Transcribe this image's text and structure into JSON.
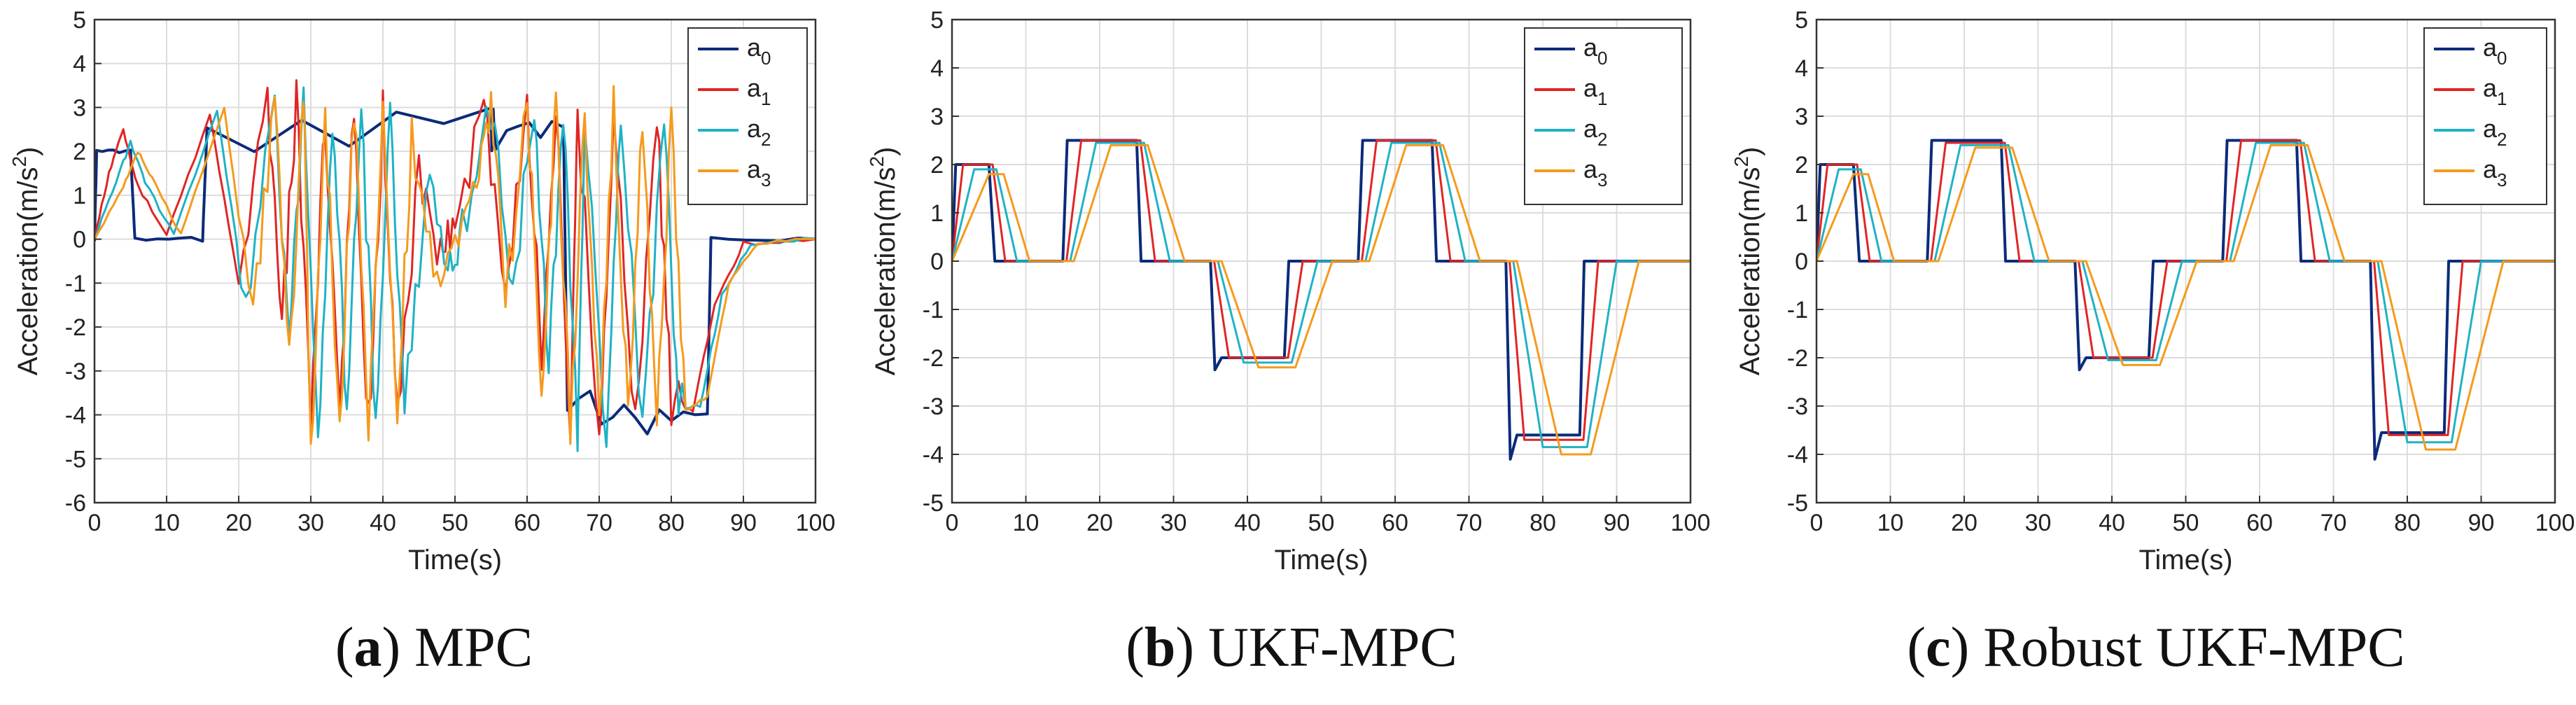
{
  "colors": {
    "a0": "#0b2b7a",
    "a1": "#e02525",
    "a2": "#1fb2c5",
    "a3": "#f59a1c",
    "grid": "#dcdcdc",
    "axis": "#333333"
  },
  "chart_data": [
    {
      "type": "line",
      "id": "mpc",
      "title": "",
      "caption": {
        "letter": "a",
        "text": "MPC"
      },
      "xlabel": "Time(s)",
      "ylabel_base": "Acceleration(m/s",
      "ylabel_sup": "2",
      "ylabel_close": ")",
      "xlim": [
        0,
        100
      ],
      "ylim": [
        -6,
        5
      ],
      "xticks": [
        0,
        10,
        20,
        30,
        40,
        50,
        60,
        70,
        80,
        90,
        100
      ],
      "yticks": [
        5,
        4,
        3,
        2,
        1,
        0,
        -1,
        -2,
        -3,
        -4,
        -5,
        -6
      ],
      "legend_position": "top-right",
      "grid": true,
      "series": [
        {
          "name": "a0",
          "label": "a",
          "sub": "0",
          "color": "#0b2b7a",
          "x": [
            0,
            0.3,
            5,
            5.6,
            15,
            15.6,
            55,
            55.6,
            65,
            65.6,
            75,
            85,
            85.5,
            100
          ],
          "y": [
            0,
            2,
            2,
            0,
            0,
            2.5,
            2.5,
            2.5,
            2.5,
            -3.6,
            -4,
            -4,
            0,
            0
          ]
        },
        {
          "name": "a1",
          "label": "a",
          "sub": "1",
          "color": "#e02525",
          "x": [
            0,
            2,
            4,
            6,
            10,
            16,
            20,
            24,
            26,
            28,
            30,
            32,
            34,
            36,
            38,
            40,
            42,
            45,
            48,
            50,
            54,
            57,
            60,
            62,
            64,
            66,
            67,
            70,
            72,
            75,
            78,
            80,
            83,
            86,
            90,
            100
          ],
          "y": [
            0,
            1.5,
            2.5,
            1.2,
            0.1,
            2.8,
            -1,
            3.0,
            -2,
            3.1,
            -4,
            2.9,
            -4.2,
            3.0,
            -4.3,
            2.8,
            -4.2,
            1.5,
            -0.5,
            0.2,
            3.1,
            -1,
            3.2,
            -2.5,
            3.1,
            -4.5,
            3.0,
            -4.8,
            2.8,
            -4.4,
            2.9,
            -3.8,
            -3.9,
            -1.5,
            -0.1,
            0
          ]
        },
        {
          "name": "a2",
          "label": "a",
          "sub": "2",
          "color": "#1fb2c5",
          "x": [
            0,
            3,
            5,
            7,
            11,
            17,
            21,
            25,
            27,
            29,
            31,
            33,
            35,
            37,
            39,
            41,
            43,
            46,
            49,
            51,
            55,
            58,
            61,
            63,
            65,
            67,
            68,
            71,
            73,
            76,
            79,
            81,
            84,
            87,
            91,
            100
          ],
          "y": [
            0,
            1.3,
            2.2,
            1.3,
            0.1,
            2.9,
            -1.5,
            3.1,
            -2.5,
            3.1,
            -4.5,
            3.0,
            -4.0,
            3.0,
            -4.4,
            2.7,
            -4.0,
            1.2,
            -0.3,
            0.1,
            3.1,
            -1.2,
            3.2,
            -3,
            3.0,
            -4.3,
            2.9,
            -4.6,
            2.6,
            -4.3,
            2.8,
            -3.9,
            -3.8,
            -1.3,
            -0.1,
            0
          ]
        },
        {
          "name": "a3",
          "label": "a",
          "sub": "3",
          "color": "#f59a1c",
          "x": [
            0,
            4,
            6,
            8,
            12,
            18,
            22,
            25,
            27,
            29,
            30,
            32,
            34,
            36,
            38,
            40,
            42,
            44,
            47,
            50,
            53,
            55,
            57,
            60,
            62,
            64,
            66,
            68,
            70,
            72,
            74,
            76,
            78,
            80,
            82,
            85,
            88,
            92,
            100
          ],
          "y": [
            0,
            1.2,
            2.0,
            1.4,
            0.1,
            3.0,
            -2,
            3.3,
            -3,
            3.2,
            -4.9,
            3.1,
            -4.5,
            3.1,
            -4.6,
            3.0,
            -4.3,
            2.5,
            -1,
            0.3,
            1.0,
            3.2,
            -1.5,
            3.3,
            -3.5,
            3.1,
            -4.2,
            3.0,
            -4.5,
            2.9,
            -4.2,
            2.9,
            -4.0,
            2.7,
            -3.9,
            -3.6,
            -1.0,
            -0.1,
            0
          ]
        }
      ]
    },
    {
      "type": "line",
      "id": "ukf-mpc",
      "title": "",
      "caption": {
        "letter": "b",
        "text": "UKF-MPC"
      },
      "xlabel": "Time(s)",
      "ylabel_base": "Acceleration(m/s",
      "ylabel_sup": "2",
      "ylabel_close": ")",
      "xlim": [
        0,
        100
      ],
      "ylim": [
        -5,
        5
      ],
      "xticks": [
        0,
        10,
        20,
        30,
        40,
        50,
        60,
        70,
        80,
        90,
        100
      ],
      "yticks": [
        5,
        4,
        3,
        2,
        1,
        0,
        -1,
        -2,
        -3,
        -4,
        -5
      ],
      "legend_position": "top-right",
      "grid": true,
      "series": [
        {
          "name": "a0",
          "label": "a",
          "sub": "0",
          "color": "#0b2b7a",
          "x": [
            0,
            0.5,
            5,
            5.8,
            15,
            15.6,
            25,
            25.6,
            35,
            35.6,
            36.5,
            45,
            45.6,
            55,
            55.6,
            65,
            65.6,
            75,
            75.6,
            76.5,
            85,
            85.6,
            100
          ],
          "y": [
            0,
            2,
            2,
            0,
            0,
            2.5,
            2.5,
            0,
            0,
            -2.25,
            -2,
            -2,
            0,
            0,
            2.5,
            2.5,
            0,
            0,
            -4.1,
            -3.6,
            -3.6,
            0,
            0
          ]
        },
        {
          "name": "a1",
          "label": "a",
          "sub": "1",
          "color": "#e02525",
          "x": [
            0,
            1.5,
            5.5,
            7.2,
            15.5,
            17.5,
            25.5,
            27.5,
            35.5,
            37.5,
            45.5,
            47.5,
            55.5,
            57.5,
            65.5,
            67.5,
            75.5,
            77.5,
            85.5,
            87.5,
            100
          ],
          "y": [
            0,
            2,
            2,
            0,
            0,
            2.5,
            2.5,
            0,
            0,
            -2,
            -2,
            0,
            0,
            2.5,
            2.5,
            0,
            0,
            -3.7,
            -3.7,
            0,
            0
          ]
        },
        {
          "name": "a2",
          "label": "a",
          "sub": "2",
          "color": "#1fb2c5",
          "x": [
            0,
            3,
            6,
            8.8,
            16,
            19.5,
            26,
            29.5,
            36,
            39.5,
            46,
            49.5,
            56,
            59.5,
            66,
            69.5,
            76,
            80,
            86,
            90,
            100
          ],
          "y": [
            0,
            1.9,
            1.9,
            0,
            0,
            2.45,
            2.45,
            0,
            0,
            -2.1,
            -2.1,
            0,
            0,
            2.45,
            2.45,
            0,
            0,
            -3.85,
            -3.85,
            0,
            0
          ]
        },
        {
          "name": "a3",
          "label": "a",
          "sub": "3",
          "color": "#f59a1c",
          "x": [
            0,
            5,
            7,
            10.5,
            16.5,
            21.5,
            26.5,
            31.5,
            36.5,
            41.5,
            46.5,
            51.5,
            56.5,
            61.5,
            66.5,
            71.5,
            76.5,
            82.5,
            86.5,
            93,
            100
          ],
          "y": [
            0,
            1.8,
            1.8,
            0,
            0,
            2.4,
            2.4,
            0,
            0,
            -2.2,
            -2.2,
            0,
            0,
            2.4,
            2.4,
            0,
            0,
            -4.0,
            -4.0,
            0,
            0
          ]
        }
      ]
    },
    {
      "type": "line",
      "id": "robust-ukf-mpc",
      "title": "",
      "caption": {
        "letter": "c",
        "text": "Robust UKF-MPC"
      },
      "xlabel": "Time(s)",
      "ylabel_base": "Acceleration(m/s",
      "ylabel_sup": "2",
      "ylabel_close": ")",
      "xlim": [
        0,
        100
      ],
      "ylim": [
        -5,
        5
      ],
      "xticks": [
        0,
        10,
        20,
        30,
        40,
        50,
        60,
        70,
        80,
        90,
        100
      ],
      "yticks": [
        5,
        4,
        3,
        2,
        1,
        0,
        -1,
        -2,
        -3,
        -4,
        -5
      ],
      "legend_position": "top-right",
      "grid": true,
      "series": [
        {
          "name": "a0",
          "label": "a",
          "sub": "0",
          "color": "#0b2b7a",
          "x": [
            0,
            0.5,
            5,
            5.8,
            15,
            15.6,
            25,
            25.6,
            35,
            35.6,
            36.5,
            45,
            45.6,
            55,
            55.6,
            65,
            65.6,
            75,
            75.6,
            76.5,
            85,
            85.6,
            100
          ],
          "y": [
            0,
            2,
            2,
            0,
            0,
            2.5,
            2.5,
            0,
            0,
            -2.25,
            -2,
            -2,
            0,
            0,
            2.5,
            2.5,
            0,
            0,
            -4.1,
            -3.55,
            -3.55,
            0,
            0
          ]
        },
        {
          "name": "a1",
          "label": "a",
          "sub": "1",
          "color": "#e02525",
          "x": [
            0,
            1.5,
            5.5,
            7.2,
            15.5,
            17.5,
            25.5,
            27.5,
            35.5,
            37.5,
            45.5,
            47.5,
            55.5,
            57.5,
            65.5,
            67.5,
            75.5,
            77.5,
            85.5,
            87.5,
            100
          ],
          "y": [
            0,
            2,
            2,
            0,
            0,
            2.45,
            2.45,
            0,
            0,
            -2,
            -2,
            0,
            0,
            2.5,
            2.5,
            0,
            0,
            -3.6,
            -3.6,
            0,
            0
          ]
        },
        {
          "name": "a2",
          "label": "a",
          "sub": "2",
          "color": "#1fb2c5",
          "x": [
            0,
            3,
            6,
            8.8,
            16,
            19.5,
            26,
            29.5,
            36,
            39.5,
            46,
            49.5,
            56,
            59.5,
            66,
            69.5,
            76,
            80,
            86,
            90,
            100
          ],
          "y": [
            0,
            1.9,
            1.9,
            0,
            0,
            2.4,
            2.4,
            0,
            0,
            -2.05,
            -2.05,
            0,
            0,
            2.45,
            2.45,
            0,
            0,
            -3.75,
            -3.75,
            0,
            0
          ]
        },
        {
          "name": "a3",
          "label": "a",
          "sub": "3",
          "color": "#f59a1c",
          "x": [
            0,
            5,
            7,
            10.5,
            16.5,
            21.5,
            26.5,
            31.5,
            36.5,
            41.5,
            46.5,
            51.5,
            56.5,
            61.5,
            66.5,
            71.5,
            76.5,
            82.5,
            86.5,
            93,
            100
          ],
          "y": [
            0,
            1.8,
            1.8,
            0,
            0,
            2.35,
            2.35,
            0,
            0,
            -2.15,
            -2.15,
            0,
            0,
            2.4,
            2.4,
            0,
            0,
            -3.9,
            -3.9,
            0,
            0
          ]
        }
      ]
    }
  ]
}
